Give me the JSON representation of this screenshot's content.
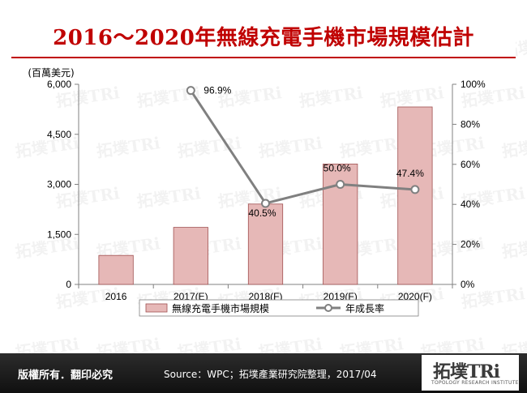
{
  "title": "2016～2020年無線充電手機市場規模估計",
  "chart_data": {
    "type": "bar",
    "categories": [
      "2016",
      "2017(E)",
      "2018(F)",
      "2019(F)",
      "2020(F)"
    ],
    "series": [
      {
        "name": "無線充電手機市場規模",
        "type": "bar",
        "axis": "left",
        "values": [
          870,
          1710,
          2410,
          3610,
          5320
        ]
      },
      {
        "name": "年成長率",
        "type": "line",
        "axis": "right",
        "values": [
          null,
          96.9,
          40.5,
          50.0,
          47.4
        ]
      }
    ],
    "point_labels": [
      "",
      "96.9%",
      "40.5%",
      "50.0%",
      "47.4%"
    ],
    "y_left": {
      "label": "(百萬美元)",
      "ticks": [
        "0",
        "1,500",
        "3,000",
        "4,500",
        "6,000"
      ],
      "min": 0,
      "max": 6000
    },
    "y_right": {
      "ticks": [
        "0%",
        "20%",
        "40%",
        "60%",
        "80%",
        "100%"
      ],
      "min": 0,
      "max": 100
    },
    "legend_position": "bottom",
    "colors": {
      "bar_fill": "#e6b8b7",
      "bar_stroke": "#a05050",
      "line": "#808080",
      "marker_fill": "#ffffff"
    }
  },
  "footer": {
    "rights": "版權所有．翻印必究",
    "source": "Source：WPC；拓墣產業研究院整理，2017/04",
    "logo_main": "拓墣TRi",
    "logo_sub": "TOPOLOGY RESEARCH INSTITUTE"
  },
  "watermark": "拓墣TRi"
}
